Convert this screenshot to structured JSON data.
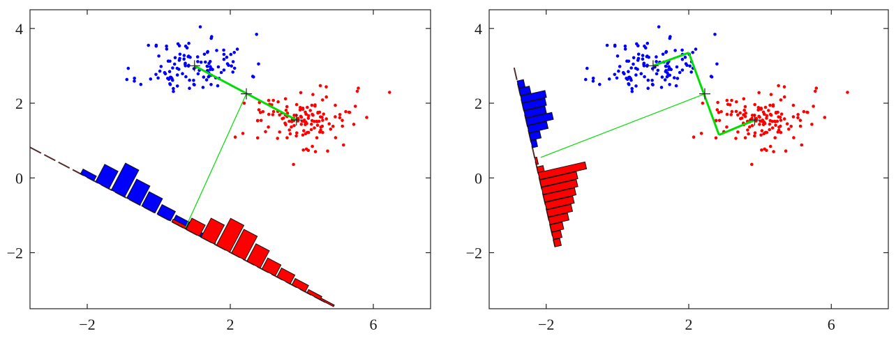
{
  "chart_data": [
    {
      "type": "scatter",
      "panel": "left",
      "title": "",
      "xlabel": "",
      "ylabel": "",
      "xlim": [
        -3.6,
        7.6
      ],
      "ylim": [
        -3.5,
        4.5
      ],
      "xticks": [
        -2,
        2,
        6
      ],
      "yticks": [
        4,
        2,
        0,
        -2
      ],
      "xtick_labels": [
        "−2",
        "2",
        "6"
      ],
      "ytick_labels": [
        "4",
        "2",
        "0",
        "−2"
      ],
      "grid": false,
      "colors": {
        "class1": "#0000ff",
        "class2": "#ff0000",
        "projection": "#00dd00",
        "line": "#552a2a"
      },
      "means": [
        [
          1.0,
          3.0
        ],
        [
          3.85,
          1.55
        ]
      ],
      "midpoint": [
        2.45,
        2.25
      ],
      "projection_line": [
        [
          -3.6,
          0.82
        ],
        [
          4.7,
          -3.35
        ]
      ],
      "guide_segments": [
        {
          "from": [
            1.0,
            3.0
          ],
          "to": [
            3.85,
            1.55
          ]
        },
        {
          "from": [
            2.45,
            2.25
          ],
          "to": [
            0.75,
            -1.33
          ]
        }
      ],
      "histogram_class1": {
        "positions": [
          -2.0,
          -1.58,
          -1.14,
          -0.71,
          -0.29,
          0.14,
          0.57,
          0.99,
          1.38
        ],
        "heights": [
          0.15,
          0.55,
          0.85,
          0.6,
          0.45,
          0.3,
          0.22,
          0.12,
          0.05
        ]
      },
      "histogram_class2": {
        "positions": [
          0.55,
          0.95,
          1.37,
          1.8,
          2.22,
          2.65,
          3.07,
          3.49,
          3.91,
          4.33,
          4.7
        ],
        "heights": [
          0.08,
          0.35,
          0.6,
          0.85,
          0.75,
          0.55,
          0.35,
          0.28,
          0.2,
          0.1,
          0.05
        ]
      }
    },
    {
      "type": "scatter",
      "panel": "right",
      "title": "",
      "xlabel": "",
      "ylabel": "",
      "xlim": [
        -3.6,
        7.6
      ],
      "ylim": [
        -3.5,
        4.5
      ],
      "xticks": [
        -2,
        2,
        6
      ],
      "yticks": [
        4,
        2,
        0,
        -2
      ],
      "xtick_labels": [
        "−2",
        "2",
        "6"
      ],
      "ytick_labels": [
        "4",
        "2",
        "0",
        "−2"
      ],
      "grid": false,
      "colors": {
        "class1": "#0000ff",
        "class2": "#ff0000",
        "projection": "#00dd00",
        "line": "#552a2a"
      },
      "means": [
        [
          1.0,
          3.0
        ],
        [
          3.85,
          1.55
        ]
      ],
      "midpoint": [
        2.45,
        2.25
      ],
      "projection_line": [
        [
          -2.9,
          2.95
        ],
        [
          -1.75,
          -1.85
        ]
      ],
      "guide_segments": [
        {
          "from": [
            1.0,
            3.0
          ],
          "to": [
            2.0,
            3.35
          ]
        },
        {
          "from": [
            2.0,
            3.35
          ],
          "to": [
            2.85,
            1.15
          ]
        },
        {
          "from": [
            2.85,
            1.15
          ],
          "to": [
            3.85,
            1.55
          ]
        },
        {
          "from": [
            2.45,
            2.25
          ],
          "to": [
            -2.15,
            0.55
          ]
        }
      ],
      "histogram_class1": {
        "positions": [
          2.5,
          2.3,
          2.1,
          1.9,
          1.7,
          1.5,
          1.3,
          1.1,
          0.9
        ],
        "heights": [
          0.18,
          0.3,
          0.7,
          0.65,
          0.6,
          0.75,
          0.55,
          0.3,
          0.15
        ]
      },
      "histogram_class2": {
        "positions": [
          0.45,
          0.2,
          0.05,
          -0.15,
          -0.35,
          -0.55,
          -0.75,
          -0.95,
          -1.15,
          -1.35,
          -1.55,
          -1.75
        ],
        "heights": [
          0.06,
          0.18,
          1.35,
          1.05,
          1.0,
          0.9,
          0.8,
          0.7,
          0.55,
          0.35,
          0.25,
          0.18
        ]
      }
    }
  ]
}
